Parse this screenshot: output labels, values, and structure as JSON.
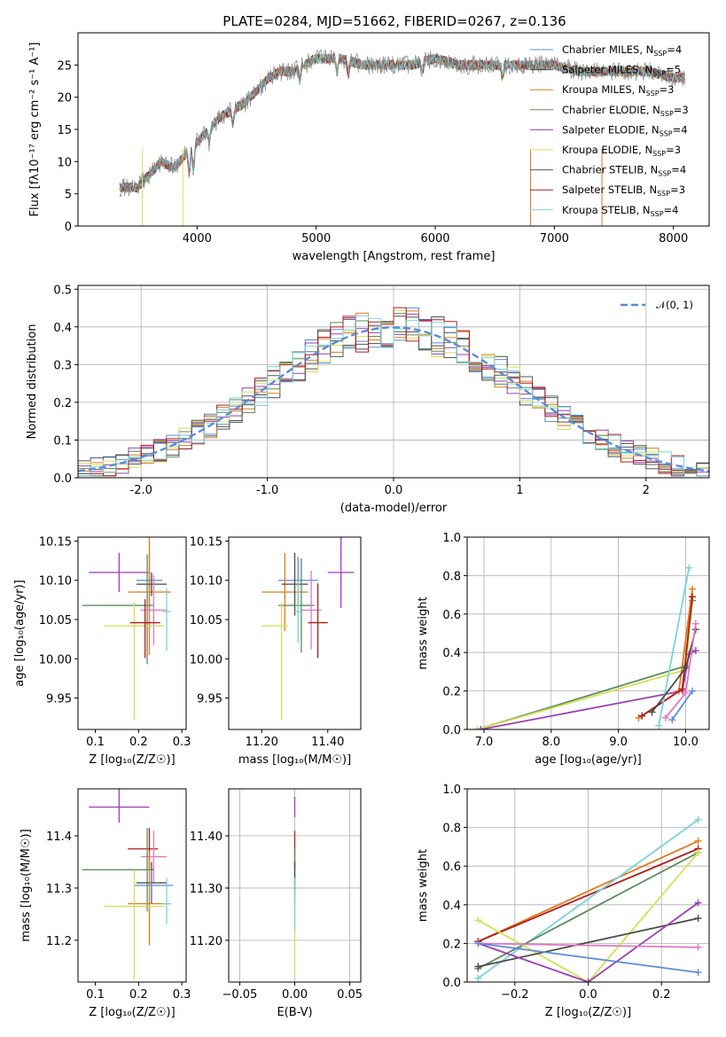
{
  "figure_title": "PLATE=0284, MJD=51662, FIBERID=0267, z=0.136",
  "colors": [
    "#7f7f7f",
    "#ff7f0e",
    "#2ca02c",
    "#d62728",
    "#9467bd",
    "#8c564b",
    "#e377c2",
    "#7f7f7f",
    "#bcbd22",
    "#17becf"
  ],
  "chart_data": [
    {
      "id": "spectrum",
      "type": "line",
      "title": "PLATE=0284, MJD=51662, FIBERID=0267, z=0.136",
      "xlabel": "wavelength [Angstrom, rest frame]",
      "ylabel": "Flux [fλ10⁻¹⁷ erg cm⁻² s⁻¹ A⁻¹]",
      "xlim": [
        3000,
        8300
      ],
      "ylim": [
        0,
        30
      ],
      "xticks": [
        4000,
        5000,
        6000,
        7000,
        8000
      ],
      "yticks": [
        0,
        5,
        10,
        15,
        20,
        25
      ],
      "grid": false,
      "legend_position": "top-right",
      "series": [
        {
          "name": "Chabrier MILES, N_SSP=4",
          "color": "#5b8bd8"
        },
        {
          "name": "Salpeter MILES, N_SSP=5",
          "color": "#4a4a4a"
        },
        {
          "name": "Kroupa MILES, N_SSP=3",
          "color": "#e07b19"
        },
        {
          "name": "Chabrier ELODIE, N_SSP=3",
          "color": "#5e8a5e"
        },
        {
          "name": "Salpeter ELODIE, N_SSP=4",
          "color": "#9b3fb6"
        },
        {
          "name": "Kroupa ELODIE, N_SSP=3",
          "color": "#d4e057"
        },
        {
          "name": "Chabrier STELIB, N_SSP=4",
          "color": "#555555"
        },
        {
          "name": "Salpeter STELIB, N_SSP=3",
          "color": "#b01c1c"
        },
        {
          "name": "Kroupa STELIB, N_SSP=4",
          "color": "#79d3d9"
        }
      ],
      "spectrum_envelope": {
        "x": [
          3350,
          3500,
          3600,
          3700,
          3800,
          3900,
          4000,
          4100,
          4200,
          4300,
          4400,
          4500,
          4600,
          4700,
          4800,
          4900,
          5000,
          5200,
          5400,
          5600,
          5800,
          6000,
          6200,
          6400,
          6600,
          6800,
          7000,
          7200,
          7400,
          7600,
          7800,
          8000,
          8100
        ],
        "y": [
          6,
          6,
          8,
          10,
          9,
          11,
          13,
          15,
          17,
          18,
          19,
          21,
          23,
          24,
          24,
          25,
          26,
          26,
          25,
          25,
          25,
          26,
          25,
          25,
          25,
          25,
          25,
          24,
          24,
          24,
          24,
          23,
          23
        ]
      }
    },
    {
      "id": "residuals",
      "type": "histogram",
      "xlabel": "(data-model)/error",
      "ylabel": "Normed distribution",
      "xlim": [
        -2.5,
        2.5
      ],
      "ylim": [
        0,
        0.51
      ],
      "xticks": [
        -2,
        -1,
        0,
        1,
        2
      ],
      "yticks": [
        0.0,
        0.1,
        0.2,
        0.3,
        0.4,
        0.5
      ],
      "grid": true,
      "legend_position": "top-right",
      "reference_curve": {
        "name": "𝒩(0, 1)",
        "color": "#5b8bd8",
        "style": "dashed"
      }
    },
    {
      "id": "age-vs-z",
      "type": "scatter",
      "xlabel": "Z [log₁₀(Z/Z☉)]",
      "ylabel": "age  [log₁₀(age/yr)]",
      "xlim": [
        0.06,
        0.31
      ],
      "ylim": [
        9.91,
        10.155
      ],
      "xticks": [
        0.1,
        0.2,
        0.3
      ],
      "yticks": [
        9.95,
        10.0,
        10.05,
        10.1,
        10.15
      ],
      "grid": false,
      "points": [
        {
          "x": 0.225,
          "y": 10.1,
          "xerr": [
            0.03,
            0.03
          ],
          "yerr": [
            0.04,
            0.04
          ],
          "color": "#5b8bd8"
        },
        {
          "x": 0.155,
          "y": 10.11,
          "xerr": [
            0.07,
            0.07
          ],
          "yerr": [
            0.025,
            0.025
          ],
          "color": "#9b3fb6"
        },
        {
          "x": 0.225,
          "y": 10.085,
          "xerr": [
            0.05,
            0.05
          ],
          "yerr": [
            0.08,
            0.08
          ],
          "color": "#e07b19"
        },
        {
          "x": 0.23,
          "y": 10.095,
          "xerr": [
            0.035,
            0.035
          ],
          "yerr": [
            0.015,
            0.015
          ],
          "color": "#4a4a4a"
        },
        {
          "x": 0.22,
          "y": 10.068,
          "xerr": [
            0.15,
            0.015
          ],
          "yerr": [
            0.075,
            0.065
          ],
          "color": "#5e8a5e"
        },
        {
          "x": 0.235,
          "y": 10.062,
          "xerr": [
            0.03,
            0.03
          ],
          "yerr": [
            0.045,
            0.045
          ],
          "color": "#e377c2"
        },
        {
          "x": 0.19,
          "y": 10.042,
          "xerr": [
            0.07,
            0.07
          ],
          "yerr": [
            0.12,
            0.03
          ],
          "color": "#d4e057"
        },
        {
          "x": 0.215,
          "y": 10.046,
          "xerr": [
            0.035,
            0.035
          ],
          "yerr": [
            0.045,
            0.03
          ],
          "color": "#b01c1c"
        },
        {
          "x": 0.265,
          "y": 10.06,
          "xerr": [
            0.01,
            0.01
          ],
          "yerr": [
            0.05,
            0.03
          ],
          "color": "#79d3d9"
        }
      ]
    },
    {
      "id": "age-vs-mass",
      "type": "scatter",
      "xlabel": "mass [log₁₀(M/M☉)]",
      "ylabel": "",
      "xlim": [
        11.1,
        11.5
      ],
      "ylim": [
        9.91,
        10.155
      ],
      "xticks": [
        11.2,
        11.4
      ],
      "yticks": [
        9.95,
        10.0,
        10.05,
        10.1,
        10.15
      ],
      "grid": false,
      "points": [
        {
          "x": 11.31,
          "y": 10.1,
          "xerr": [
            0.06,
            0.06
          ],
          "yerr": [
            0.03,
            0.03
          ],
          "color": "#5b8bd8"
        },
        {
          "x": 11.44,
          "y": 10.11,
          "xerr": [
            0.04,
            0.04
          ],
          "yerr": [
            0.045,
            0.045
          ],
          "color": "#9b3fb6"
        },
        {
          "x": 11.27,
          "y": 10.085,
          "xerr": [
            0.07,
            0.07
          ],
          "yerr": [
            0.05,
            0.05
          ],
          "color": "#e07b19"
        },
        {
          "x": 11.3,
          "y": 10.095,
          "xerr": [
            0.04,
            0.04
          ],
          "yerr": [
            0.04,
            0.04
          ],
          "color": "#4a4a4a"
        },
        {
          "x": 11.32,
          "y": 10.068,
          "xerr": [
            0.07,
            0.04
          ],
          "yerr": [
            0.06,
            0.06
          ],
          "color": "#5e8a5e"
        },
        {
          "x": 11.35,
          "y": 10.062,
          "xerr": [
            0.03,
            0.03
          ],
          "yerr": [
            0.05,
            0.05
          ],
          "color": "#e377c2"
        },
        {
          "x": 11.26,
          "y": 10.042,
          "xerr": [
            0.06,
            0.02
          ],
          "yerr": [
            0.12,
            0.03
          ],
          "color": "#d4e057"
        },
        {
          "x": 11.37,
          "y": 10.046,
          "xerr": [
            0.03,
            0.03
          ],
          "yerr": [
            0.045,
            0.05
          ],
          "color": "#b01c1c"
        },
        {
          "x": 11.31,
          "y": 10.06,
          "xerr": [
            0.01,
            0.01
          ],
          "yerr": [
            0.04,
            0.04
          ],
          "color": "#79d3d9"
        }
      ]
    },
    {
      "id": "weight-vs-age",
      "type": "line",
      "xlabel": "age  [log₁₀(age/yr)]",
      "ylabel": "mass weight",
      "xlim": [
        6.75,
        10.35
      ],
      "ylim": [
        0,
        1.0
      ],
      "xticks": [
        7,
        8,
        9,
        10
      ],
      "yticks": [
        0.0,
        0.2,
        0.4,
        0.6,
        0.8,
        1.0
      ],
      "grid": true,
      "series": [
        {
          "color": "#5e8a5e",
          "x": [
            6.9,
            10.0,
            10.1
          ],
          "y": [
            0.0,
            0.33,
            0.67
          ]
        },
        {
          "color": "#d4e057",
          "x": [
            6.9,
            10.0,
            10.1
          ],
          "y": [
            0.0,
            0.31,
            0.69
          ]
        },
        {
          "color": "#9b3fb6",
          "x": [
            6.95,
            9.95,
            10.05,
            10.15
          ],
          "y": [
            0.0,
            0.2,
            0.39,
            0.41
          ]
        },
        {
          "color": "#e07b19",
          "x": [
            9.3,
            9.9,
            10.1
          ],
          "y": [
            0.06,
            0.2,
            0.73
          ]
        },
        {
          "color": "#b01c1c",
          "x": [
            9.35,
            9.95,
            10.1
          ],
          "y": [
            0.07,
            0.21,
            0.69
          ]
        },
        {
          "color": "#79d3d9",
          "x": [
            9.6,
            10.05
          ],
          "y": [
            0.02,
            0.84
          ]
        },
        {
          "color": "#4a4a4a",
          "x": [
            9.5,
            10.0,
            10.15
          ],
          "y": [
            0.09,
            0.32,
            0.52
          ]
        },
        {
          "color": "#e377c2",
          "x": [
            9.7,
            10.0,
            10.15
          ],
          "y": [
            0.06,
            0.19,
            0.55
          ]
        },
        {
          "color": "#5b8bd8",
          "x": [
            9.8,
            10.1
          ],
          "y": [
            0.05,
            0.2
          ]
        }
      ]
    },
    {
      "id": "mass-vs-z",
      "type": "scatter",
      "xlabel": "Z [log₁₀(Z/Z☉)]",
      "ylabel": "mass [log₁₀(M/M☉)]",
      "xlim": [
        0.06,
        0.31
      ],
      "ylim": [
        11.12,
        11.49
      ],
      "xticks": [
        0.1,
        0.2,
        0.3
      ],
      "yticks": [
        11.2,
        11.3,
        11.4
      ],
      "grid": false,
      "points": [
        {
          "x": 0.155,
          "y": 11.455,
          "xerr": [
            0.07,
            0.07
          ],
          "yerr": [
            0.03,
            0.04
          ],
          "color": "#9b3fb6"
        },
        {
          "x": 0.225,
          "y": 11.375,
          "xerr": [
            0.05,
            0.02
          ],
          "yerr": [
            0.04,
            0.04
          ],
          "color": "#b01c1c"
        },
        {
          "x": 0.235,
          "y": 11.36,
          "xerr": [
            0.03,
            0.03
          ],
          "yerr": [
            0.05,
            0.05
          ],
          "color": "#e377c2"
        },
        {
          "x": 0.22,
          "y": 11.335,
          "xerr": [
            0.15,
            0.015
          ],
          "yerr": [
            0.08,
            0.08
          ],
          "color": "#5e8a5e"
        },
        {
          "x": 0.23,
          "y": 11.31,
          "xerr": [
            0.035,
            0.035
          ],
          "yerr": [
            0.04,
            0.04
          ],
          "color": "#4a4a4a"
        },
        {
          "x": 0.23,
          "y": 11.305,
          "xerr": [
            0.04,
            0.05
          ],
          "yerr": [
            0.03,
            0.03
          ],
          "color": "#5b8bd8"
        },
        {
          "x": 0.225,
          "y": 11.27,
          "xerr": [
            0.05,
            0.05
          ],
          "yerr": [
            0.08,
            0.1
          ],
          "color": "#e07b19"
        },
        {
          "x": 0.19,
          "y": 11.265,
          "xerr": [
            0.07,
            0.07
          ],
          "yerr": [
            0.14,
            0.07
          ],
          "color": "#d4e057"
        },
        {
          "x": 0.265,
          "y": 11.27,
          "xerr": [
            0.01,
            0.01
          ],
          "yerr": [
            0.04,
            0.05
          ],
          "color": "#79d3d9"
        }
      ]
    },
    {
      "id": "mass-vs-ebv",
      "type": "scatter",
      "xlabel": "E(B-V)",
      "ylabel": "",
      "xlim": [
        -0.06,
        0.06
      ],
      "ylim": [
        11.12,
        11.49
      ],
      "xticks": [
        -0.05,
        0.0,
        0.05
      ],
      "yticks": [
        11.2,
        11.3,
        11.4
      ],
      "grid": true,
      "points": [
        {
          "x": 0.0,
          "y": 11.455,
          "xerr": [
            0,
            0
          ],
          "yerr": [
            0.02,
            0.02
          ],
          "color": "#9b3fb6"
        },
        {
          "x": 0.0,
          "y": 11.375,
          "xerr": [
            0,
            0
          ],
          "yerr": [
            0.035,
            0.035
          ],
          "color": "#b01c1c"
        },
        {
          "x": 0.0,
          "y": 11.335,
          "xerr": [
            0,
            0
          ],
          "yerr": [
            0.04,
            0.04
          ],
          "color": "#5e8a5e"
        },
        {
          "x": 0.0,
          "y": 11.31,
          "xerr": [
            0,
            0
          ],
          "yerr": [
            0.04,
            0.04
          ],
          "color": "#4a4a4a"
        },
        {
          "x": 0.0,
          "y": 11.265,
          "xerr": [
            0,
            0
          ],
          "yerr": [
            0.13,
            0.04
          ],
          "color": "#d4e057"
        },
        {
          "x": 0.0,
          "y": 11.27,
          "xerr": [
            0,
            0
          ],
          "yerr": [
            0.05,
            0.05
          ],
          "color": "#79d3d9"
        }
      ]
    },
    {
      "id": "weight-vs-z",
      "type": "line",
      "xlabel": "Z [log₁₀(Z/Z☉)]",
      "ylabel": "mass weight",
      "xlim": [
        -0.33,
        0.33
      ],
      "ylim": [
        0,
        1.0
      ],
      "xticks": [
        -0.2,
        0.0,
        0.2
      ],
      "yticks": [
        0.0,
        0.2,
        0.4,
        0.6,
        0.8,
        1.0
      ],
      "grid": true,
      "series": [
        {
          "color": "#e07b19",
          "x": [
            -0.3,
            0.3
          ],
          "y": [
            0.21,
            0.73
          ]
        },
        {
          "color": "#b01c1c",
          "x": [
            -0.3,
            0.3
          ],
          "y": [
            0.21,
            0.69
          ]
        },
        {
          "color": "#79d3d9",
          "x": [
            -0.3,
            0.3
          ],
          "y": [
            0.02,
            0.84
          ]
        },
        {
          "color": "#5e8a5e",
          "x": [
            -0.3,
            0.3
          ],
          "y": [
            0.07,
            0.67
          ]
        },
        {
          "color": "#d4e057",
          "x": [
            -0.3,
            0.0,
            0.3
          ],
          "y": [
            0.32,
            0.0,
            0.67
          ]
        },
        {
          "color": "#4a4a4a",
          "x": [
            -0.3,
            0.3
          ],
          "y": [
            0.08,
            0.33
          ]
        },
        {
          "color": "#9b3fb6",
          "x": [
            -0.3,
            0.0,
            0.3
          ],
          "y": [
            0.2,
            0.0,
            0.41
          ]
        },
        {
          "color": "#e377c2",
          "x": [
            -0.3,
            0.3
          ],
          "y": [
            0.2,
            0.18
          ]
        },
        {
          "color": "#5b8bd8",
          "x": [
            -0.3,
            0.3
          ],
          "y": [
            0.2,
            0.05
          ]
        }
      ]
    }
  ]
}
